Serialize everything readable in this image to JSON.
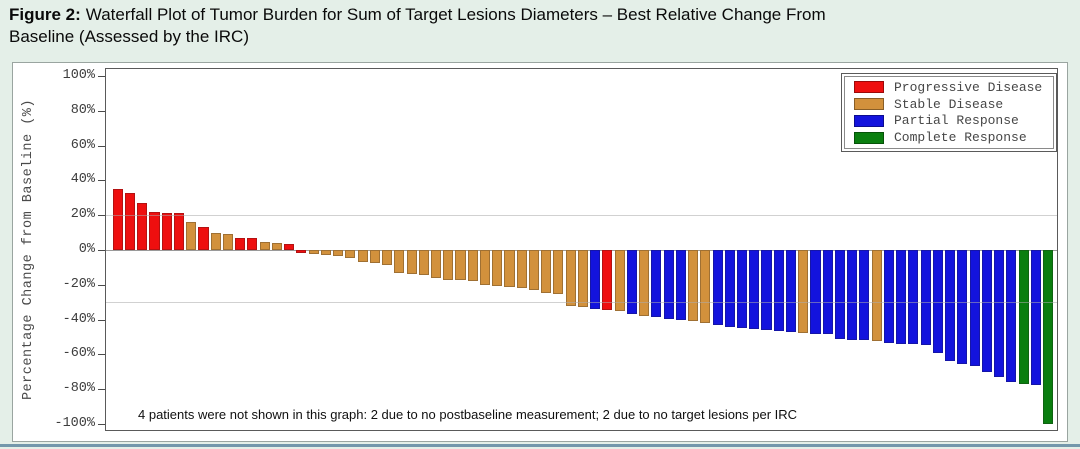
{
  "title": {
    "prefix": "Figure 2:",
    "line1": "Waterfall Plot of Tumor Burden for Sum of Target Lesions Diameters – Best Relative Change From",
    "line2": "Baseline (Assessed by the IRC)"
  },
  "chart_data": {
    "type": "bar",
    "title": "Waterfall Plot of Tumor Burden for Sum of Target Lesions Diameters – Best Relative Change From Baseline (Assessed by the IRC)",
    "xlabel": "",
    "ylabel": "Percentage Change from Baseline (%)",
    "ylim": [
      -100,
      100
    ],
    "grid": false,
    "ytick_values": [
      100,
      80,
      60,
      40,
      20,
      0,
      -20,
      -40,
      -60,
      -80,
      -100
    ],
    "ytick_labels": [
      "100%",
      "80%",
      "60%",
      "40%",
      "20%",
      "0%",
      "-20%",
      "-40%",
      "-60%",
      "-80%",
      "-100%"
    ],
    "reference_lines": [
      20,
      -30
    ],
    "legend_position": "top-right",
    "legend": [
      {
        "key": "PD",
        "label": "Progressive Disease",
        "color": "#ee0f0f"
      },
      {
        "key": "SD",
        "label": "Stable Disease",
        "color": "#d2913c"
      },
      {
        "key": "PR",
        "label": "Partial Response",
        "color": "#1313dd"
      },
      {
        "key": "CR",
        "label": "Complete Response",
        "color": "#0a7e0f"
      }
    ],
    "bars": [
      [
        35,
        "PD"
      ],
      [
        33,
        "PD"
      ],
      [
        27,
        "PD"
      ],
      [
        22,
        "PD"
      ],
      [
        21.5,
        "PD"
      ],
      [
        21,
        "PD"
      ],
      [
        16,
        "SD"
      ],
      [
        13,
        "PD"
      ],
      [
        9.5,
        "SD"
      ],
      [
        9,
        "SD"
      ],
      [
        7,
        "PD"
      ],
      [
        6.7,
        "PD"
      ],
      [
        4.8,
        "SD"
      ],
      [
        3.8,
        "SD"
      ],
      [
        3.2,
        "PD"
      ],
      [
        -1.9,
        "PD"
      ],
      [
        -2.5,
        "SD"
      ],
      [
        -2.9,
        "SD"
      ],
      [
        -3.4,
        "SD"
      ],
      [
        -4.4,
        "SD"
      ],
      [
        -6.7,
        "SD"
      ],
      [
        -7.6,
        "SD"
      ],
      [
        -8.6,
        "SD"
      ],
      [
        -13,
        "SD"
      ],
      [
        -13.7,
        "SD"
      ],
      [
        -14.3,
        "SD"
      ],
      [
        -16,
        "SD"
      ],
      [
        -17,
        "SD"
      ],
      [
        -17.5,
        "SD"
      ],
      [
        -18,
        "SD"
      ],
      [
        -20,
        "SD"
      ],
      [
        -20.6,
        "SD"
      ],
      [
        -21,
        "SD"
      ],
      [
        -22,
        "SD"
      ],
      [
        -23,
        "SD"
      ],
      [
        -24.6,
        "SD"
      ],
      [
        -25.5,
        "SD"
      ],
      [
        -32,
        "SD"
      ],
      [
        -33,
        "SD"
      ],
      [
        -34,
        "PR"
      ],
      [
        -34.6,
        "PD"
      ],
      [
        -35.2,
        "SD"
      ],
      [
        -37,
        "PR"
      ],
      [
        -37.7,
        "SD"
      ],
      [
        -38.5,
        "PR"
      ],
      [
        -39.6,
        "PR"
      ],
      [
        -40,
        "PR"
      ],
      [
        -41,
        "SD"
      ],
      [
        -42,
        "SD"
      ],
      [
        -43,
        "PR"
      ],
      [
        -44,
        "PR"
      ],
      [
        -45,
        "PR"
      ],
      [
        -45.3,
        "PR"
      ],
      [
        -46,
        "PR"
      ],
      [
        -46.3,
        "PR"
      ],
      [
        -47,
        "PR"
      ],
      [
        -47.5,
        "SD"
      ],
      [
        -48,
        "PR"
      ],
      [
        -48.5,
        "PR"
      ],
      [
        -51,
        "PR"
      ],
      [
        -51.5,
        "PR"
      ],
      [
        -52,
        "PR"
      ],
      [
        -52.5,
        "SD"
      ],
      [
        -53.3,
        "PR"
      ],
      [
        -54,
        "PR"
      ],
      [
        -54.3,
        "PR"
      ],
      [
        -54.5,
        "PR"
      ],
      [
        -59,
        "PR"
      ],
      [
        -64,
        "PR"
      ],
      [
        -65.7,
        "PR"
      ],
      [
        -66.7,
        "PR"
      ],
      [
        -70,
        "PR"
      ],
      [
        -73,
        "PR"
      ],
      [
        -76,
        "PR"
      ],
      [
        -77,
        "CR"
      ],
      [
        -77.5,
        "PR"
      ],
      [
        -100,
        "CR"
      ]
    ],
    "note": "4 patients were not shown in this graph: 2 due to no postbaseline measurement; 2 due to no target lesions per IRC"
  }
}
